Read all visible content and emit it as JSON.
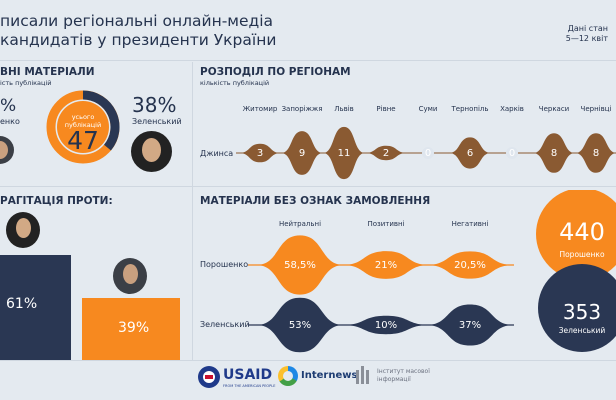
{
  "header": {
    "title_line1": "писали регіональні онлайн-медіа",
    "title_line2": "кандидатів у президенти України",
    "date_line1": "Дані стан",
    "date_line2": "5—12 квіт"
  },
  "left_top": {
    "heading": "ВНІ МАТЕРІАЛИ",
    "subtitle": "ість публікацій",
    "left_pct": "%",
    "left_name": "енко",
    "center_label": "усього публікацій",
    "total": "47",
    "right_pct": "38%",
    "right_name": "Зеленський"
  },
  "left_bottom": {
    "heading": "РАГІТАЦІЯ ПРОТИ:",
    "bar1_value": "61%",
    "bar2_value": "39%"
  },
  "regions": {
    "heading": "РОЗПОДІЛ ПО РЕГІОНАМ",
    "subtitle": "кількість публікацій",
    "row_label": "Джинса",
    "columns": [
      "Житомир",
      "Запоріжжя",
      "Львів",
      "Рівне",
      "Суми",
      "Тернопіль",
      "Харків",
      "Черкаси",
      "Чернівці"
    ],
    "values": [
      "3",
      "9",
      "11",
      "2",
      "0",
      "6",
      "0",
      "8",
      "8"
    ]
  },
  "non_ordered": {
    "heading": "МАТЕРІАЛИ БЕЗ ОЗНАК ЗАМОВЛЕННЯ",
    "columns": [
      "Нейтральні",
      "Позитивні",
      "Негативні"
    ],
    "rows": [
      {
        "name": "Порошенко",
        "values": [
          "58,5%",
          "21%",
          "20,5%"
        ]
      },
      {
        "name": "Зеленський",
        "values": [
          "53%",
          "10%",
          "37%"
        ]
      }
    ]
  },
  "totals": {
    "poroshenko_value": "440",
    "poroshenko_label": "Порошенко",
    "zelensky_value": "353",
    "zelensky_label": "Зеленський"
  },
  "footer": {
    "usaid": "USAID",
    "usaid_sub": "FROM THE AMERICAN PEOPLE",
    "internews": "Internews",
    "imi_line1": "Інститут масової",
    "imi_line2": "інформації"
  },
  "colors": {
    "orange": "#f7891f",
    "navy": "#2a3753",
    "brown": "#8a5a32",
    "bg": "#e4eaf0"
  }
}
